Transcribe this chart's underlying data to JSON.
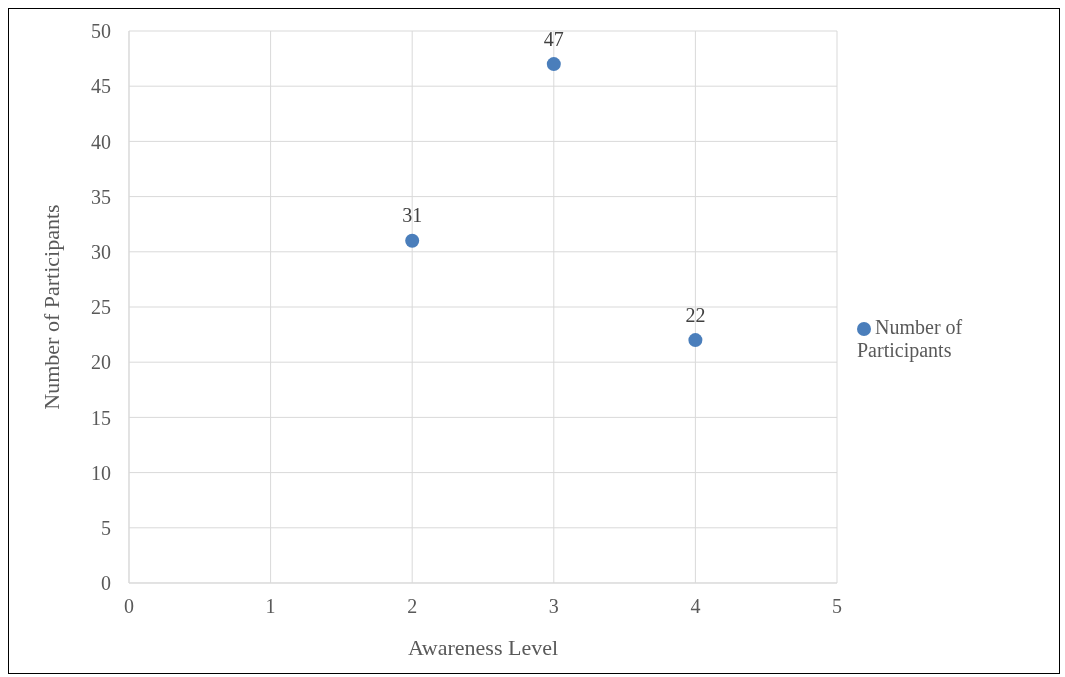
{
  "chart_data": {
    "type": "scatter",
    "xlabel": "Awareness Level",
    "ylabel": "Number of Participants",
    "x": [
      2,
      3,
      4
    ],
    "series": [
      {
        "name": "Number of Participants",
        "color": "#4a7ebb",
        "values": [
          31,
          47,
          22
        ]
      }
    ],
    "xlim": [
      0,
      5
    ],
    "xticks": [
      0,
      1,
      2,
      3,
      4,
      5
    ],
    "ylim": [
      0,
      50
    ],
    "yticks": [
      0,
      5,
      10,
      15,
      20,
      25,
      30,
      35,
      40,
      45,
      50
    ],
    "grid": true,
    "legend": "right",
    "marker": "circle",
    "data_labels": true
  }
}
